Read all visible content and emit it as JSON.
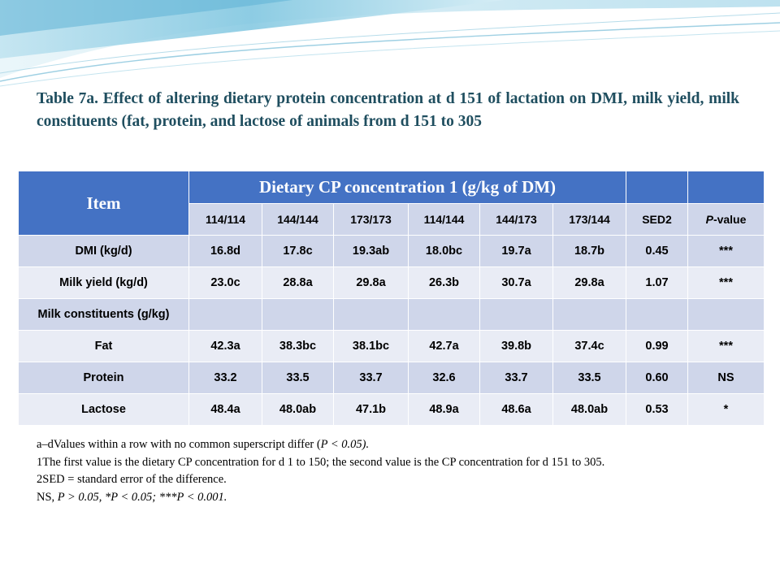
{
  "title": "Table 7a. Effect of altering dietary protein concentration at d 151 of lactation on DMI, milk yield, milk constituents (fat, protein, and lactose of animals from d 151 to 305",
  "table": {
    "item_header": "Item",
    "group_header": "Dietary CP concentration 1 (g/kg of DM)",
    "columns": [
      "114/114",
      "144/144",
      "173/173",
      "114/144",
      "144/173",
      "173/144",
      "SED2"
    ],
    "pvalue_header_prefix": "P",
    "pvalue_header_suffix": "-value",
    "rows": [
      {
        "label": "DMI (kg/d)",
        "values": [
          "16.8d",
          "17.8c",
          "19.3ab",
          "18.0bc",
          "19.7a",
          "18.7b",
          "0.45",
          "***"
        ]
      },
      {
        "label": "Milk yield (kg/d)",
        "values": [
          "23.0c",
          "28.8a",
          "29.8a",
          "26.3b",
          "30.7a",
          "29.8a",
          "1.07",
          "***"
        ]
      },
      {
        "label": "Milk constituents (g/kg)",
        "values": [
          "",
          "",
          "",
          "",
          "",
          "",
          "",
          ""
        ]
      },
      {
        "label": "Fat",
        "values": [
          "42.3a",
          "38.3bc",
          "38.1bc",
          "42.7a",
          "39.8b",
          "37.4c",
          "0.99",
          "***"
        ]
      },
      {
        "label": "Protein",
        "values": [
          "33.2",
          "33.5",
          "33.7",
          "32.6",
          "33.7",
          "33.5",
          "0.60",
          "NS"
        ]
      },
      {
        "label": "Lactose",
        "values": [
          "48.4a",
          "48.0ab",
          "47.1b",
          "48.9a",
          "48.6a",
          "48.0ab",
          "0.53",
          "*"
        ]
      }
    ]
  },
  "notes": {
    "n1_prefix": "a–dValues within a row with no common superscript differ (",
    "n1_italic": "P < 0.05).",
    "n2": "1The first value is the dietary CP concentration for d 1 to 150; the second value is the CP concentration for d 151 to 305.",
    "n3": "2SED = standard error of the difference.",
    "n4_prefix": "NS, ",
    "n4_italic": "P > 0.05, *P < 0.05; ***P < 0.001."
  },
  "colors": {
    "header": "#4472c4",
    "row_dark": "#cfd6ea",
    "row_light": "#e9ecf5",
    "title": "#1f4e5f"
  }
}
